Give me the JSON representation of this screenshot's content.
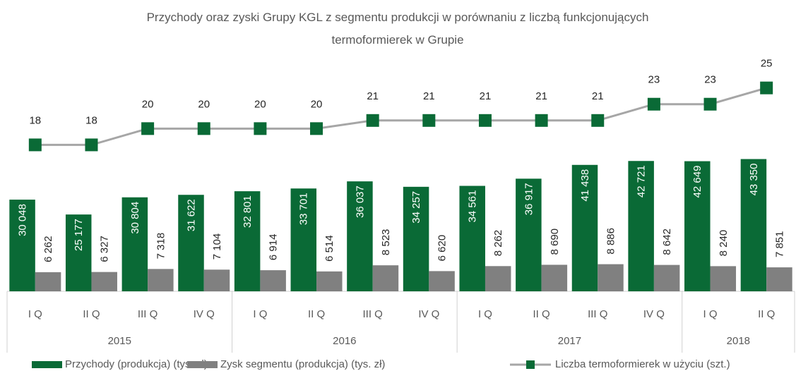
{
  "chart_data": {
    "type": "bar",
    "title": "Przychody oraz zyski Grupy KGL z segmentu produkcji w porównaniu z liczbą funkcjonujących termoformierek w Grupie",
    "groups": [
      {
        "name": "2015",
        "categories": [
          "I Q",
          "II Q",
          "III Q",
          "IV Q"
        ]
      },
      {
        "name": "2016",
        "categories": [
          "I Q",
          "II Q",
          "III Q",
          "IV Q"
        ]
      },
      {
        "name": "2017",
        "categories": [
          "I Q",
          "II Q",
          "III Q",
          "IV Q"
        ]
      },
      {
        "name": "2018",
        "categories": [
          "I Q",
          "II Q"
        ]
      }
    ],
    "ylim": [
      0,
      80000
    ],
    "y2lim": [
      0,
      30
    ],
    "series": [
      {
        "name": "Przychody (produkcja) (tys. zł)",
        "color": "#0a6a36",
        "values": [
          30048,
          25177,
          30804,
          31622,
          32801,
          33701,
          36037,
          34257,
          34561,
          36917,
          41438,
          42721,
          42649,
          43350
        ],
        "value_labels": [
          "30 048",
          "25 177",
          "30 804",
          "31 622",
          "32 801",
          "33 701",
          "36 037",
          "34 257",
          "34 561",
          "36 917",
          "41 438",
          "42 721",
          "42 649",
          "43 350"
        ]
      },
      {
        "name": "Zysk segmentu (produkcja)  (tys. zł)",
        "color": "#808080",
        "values": [
          6262,
          6327,
          7318,
          7104,
          6914,
          6514,
          8523,
          6620,
          8262,
          8690,
          8886,
          8642,
          8240,
          7851
        ],
        "value_labels": [
          "6 262",
          "6 327",
          "7 318",
          "7 104",
          "6 914",
          "6 514",
          "8 523",
          "6 620",
          "8 262",
          "8 690",
          "8 886",
          "8 642",
          "8 240",
          "7 851"
        ]
      },
      {
        "name": "Liczba termoformierek w użyciu (szt.)",
        "color": "#a6a6a6",
        "marker_color": "#0a6a36",
        "type": "line",
        "axis": "y2",
        "values": [
          18,
          18,
          20,
          20,
          20,
          20,
          21,
          21,
          21,
          21,
          21,
          23,
          23,
          25
        ]
      }
    ]
  }
}
